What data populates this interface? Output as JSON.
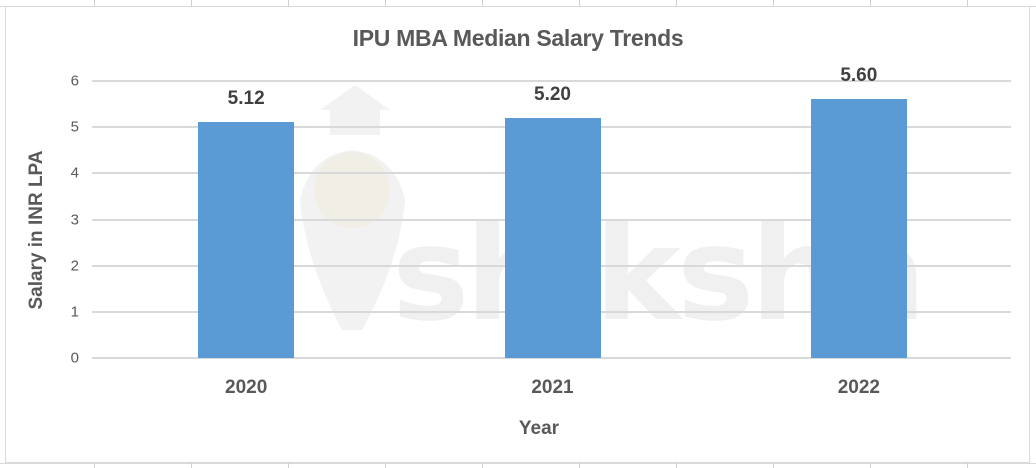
{
  "chart_data": {
    "type": "bar",
    "title": "IPU MBA Median Salary Trends",
    "xlabel": "Year",
    "ylabel": "Salary  in INR LPA",
    "categories": [
      "2020",
      "2021",
      "2022"
    ],
    "values": [
      5.12,
      5.2,
      5.6
    ],
    "data_labels": [
      "5.12",
      "5.20",
      "5.60"
    ],
    "ylim": [
      0,
      6
    ],
    "yticks": [
      "0",
      "1",
      "2",
      "3",
      "4",
      "5",
      "6"
    ],
    "grid": true,
    "legend": "none",
    "bar_color": "#5b9bd5"
  },
  "watermark": {
    "text": "shiksha"
  }
}
